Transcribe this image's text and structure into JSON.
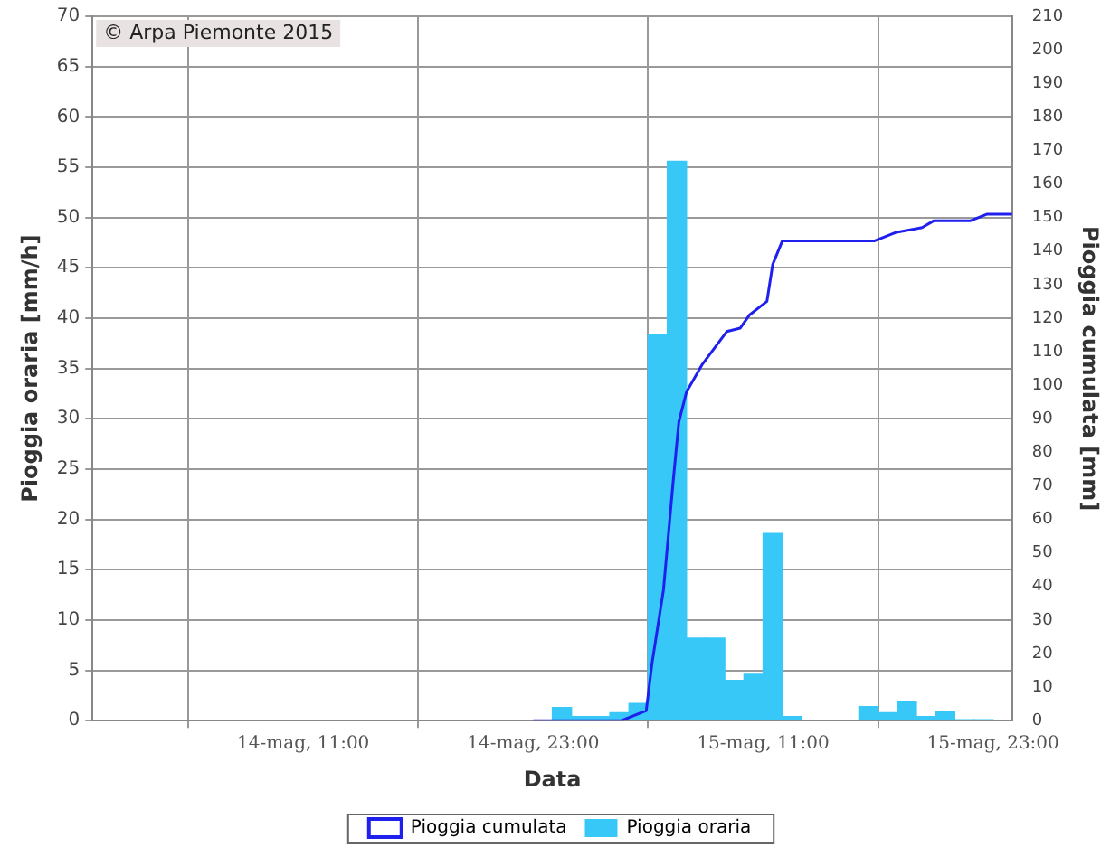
{
  "chart_data": {
    "type": "bar",
    "xlabel": "Data",
    "ylabel": "Pioggia oraria [mm/h]",
    "y2label": "Pioggia cumulata [mm]",
    "annotations": [
      "© Arpa Piemonte 2015"
    ],
    "series": [
      {
        "name": "Pioggia cumulata",
        "type": "line",
        "axis": "y2",
        "color": "#2020ee",
        "x": [
          "--05-14T23:00",
          "--05-15T00:00",
          "--05-15T03:36",
          "--05-15T04:54",
          "--05-15T05:12",
          "--05-15T05:48",
          "--05-15T06:18",
          "--05-15T06:36",
          "--05-15T07:00",
          "--05-15T07:48",
          "--05-15T09:06",
          "--05-15T09:48",
          "--05-15T10:18",
          "--05-15T11:12",
          "--05-15T11:30",
          "--05-15T12:00",
          "--05-15T16:48",
          "--05-15T17:54",
          "--05-15T19:18",
          "--05-15T19:54",
          "--05-15T21:48",
          "--05-15T22:42",
          "--05-15T23:42",
          "--05-16T00:00"
        ],
        "values": [
          0,
          0,
          0,
          3,
          17,
          39,
          71,
          89,
          98,
          106,
          116,
          117,
          121,
          125,
          136,
          143,
          143,
          145.5,
          147,
          149,
          149,
          151,
          151,
          151
        ]
      },
      {
        "name": "Pioggia oraria",
        "color": "#38c8f8",
        "x": [
          "--05-15T00:30",
          "--05-15T01:30",
          "--05-15T02:30",
          "--05-15T03:30",
          "--05-15T04:30",
          "--05-15T05:30",
          "--05-15T06:30",
          "--05-15T07:30",
          "--05-15T08:30",
          "--05-15T09:30",
          "--05-15T10:30",
          "--05-15T11:30",
          "--05-15T12:30",
          "--05-15T16:30",
          "--05-15T17:30",
          "--05-15T18:30",
          "--05-15T19:30",
          "--05-15T20:30",
          "--05-15T21:30",
          "--05-15T22:30"
        ],
        "values": [
          1.3,
          0.4,
          0.4,
          0.8,
          1.7,
          38.4,
          55.6,
          8.2,
          8.2,
          4,
          4.6,
          18.6,
          0.4,
          1.4,
          0.8,
          1.9,
          0.4,
          0.9,
          0.1,
          0.1
        ]
      }
    ],
    "xlim": [
      "--05-14T00:00",
      "--05-16T00:00"
    ],
    "xticks": [
      {
        "value": "--05-14T11:00",
        "label": "14-mag, 11:00"
      },
      {
        "value": "--05-14T23:00",
        "label": "14-mag, 23:00"
      },
      {
        "value": "--05-15T11:00",
        "label": "15-mag, 11:00"
      },
      {
        "value": "--05-15T23:00",
        "label": "15-mag, 23:00"
      }
    ],
    "ylim": [
      0,
      70
    ],
    "yticks": [
      0,
      5,
      10,
      15,
      20,
      25,
      30,
      35,
      40,
      45,
      50,
      55,
      60,
      65,
      70
    ],
    "y2lim": [
      0,
      210
    ],
    "y2ticks": [
      0,
      10,
      20,
      30,
      40,
      50,
      60,
      70,
      80,
      90,
      100,
      110,
      120,
      130,
      140,
      150,
      160,
      170,
      180,
      190,
      200,
      210
    ],
    "grid": true,
    "legend": "bottom",
    "marker": "none"
  }
}
